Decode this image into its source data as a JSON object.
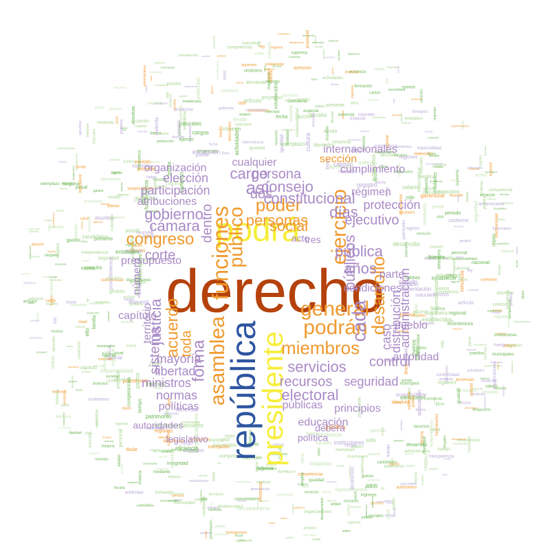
{
  "palette": {
    "dark_orange": "#b5420c",
    "navy_blue": "#2e55a0",
    "bright_yellow": "#f6ee3a",
    "orange": "#f09a2f",
    "lavender": "#a98ac6",
    "light_lavender": "#b9a7d6",
    "green": "#6ab552",
    "light_green": "#a6d48e",
    "pale_green": "#c4e3b2"
  },
  "words": {
    "primary": [
      {
        "text": "derecho",
        "color": "dark_orange"
      },
      {
        "text": "república",
        "color": "navy_blue"
      },
      {
        "text": "podrá",
        "color": "bright_yellow"
      },
      {
        "text": "presidente",
        "color": "bright_yellow"
      },
      {
        "text": "funciones",
        "color": "orange"
      },
      {
        "text": "asamblea",
        "color": "orange"
      },
      {
        "text": "público",
        "color": "orange"
      },
      {
        "text": "ejercicio",
        "color": "orange"
      },
      {
        "text": "general",
        "color": "orange"
      },
      {
        "text": "podrán",
        "color": "orange"
      },
      {
        "text": "miembros",
        "color": "orange"
      },
      {
        "text": "poder",
        "color": "orange"
      },
      {
        "text": "personas",
        "color": "orange"
      },
      {
        "text": "social",
        "color": "orange"
      },
      {
        "text": "acuerdo",
        "color": "orange"
      },
      {
        "text": "congreso",
        "color": "orange"
      },
      {
        "text": "desarrollo",
        "color": "orange"
      },
      {
        "text": "cada",
        "color": "lavender"
      },
      {
        "text": "constitucional",
        "color": "lavender"
      },
      {
        "text": "gobierno",
        "color": "lavender"
      },
      {
        "text": "servicios",
        "color": "lavender"
      },
      {
        "text": "recursos",
        "color": "lavender"
      },
      {
        "text": "consejo",
        "color": "lavender"
      },
      {
        "text": "persona",
        "color": "lavender"
      },
      {
        "text": "cámara",
        "color": "lavender"
      },
      {
        "text": "forma",
        "color": "lavender"
      },
      {
        "text": "así",
        "color": "lavender"
      },
      {
        "text": "dos",
        "color": "lavender"
      },
      {
        "text": "cargo",
        "color": "lavender"
      },
      {
        "text": "pública",
        "color": "lavender"
      },
      {
        "text": "años",
        "color": "lavender"
      },
      {
        "text": "públicos",
        "color": "lavender"
      },
      {
        "text": "días",
        "color": "lavender"
      },
      {
        "text": "ejecutivo",
        "color": "lavender"
      },
      {
        "text": "electoral",
        "color": "lavender"
      },
      {
        "text": "control",
        "color": "lavender"
      },
      {
        "text": "justicia",
        "color": "lavender"
      },
      {
        "text": "sistema",
        "color": "lavender"
      },
      {
        "text": "toda",
        "color": "orange"
      },
      {
        "text": "corte",
        "color": "lavender"
      },
      {
        "text": "dentro",
        "color": "lavender"
      },
      {
        "text": "administración",
        "color": "lavender"
      },
      {
        "text": "distribución",
        "color": "lavender"
      },
      {
        "text": "caso",
        "color": "lavender"
      },
      {
        "text": "participación",
        "color": "lavender"
      },
      {
        "text": "elección",
        "color": "lavender"
      },
      {
        "text": "mayoría",
        "color": "lavender"
      },
      {
        "text": "libertad",
        "color": "lavender"
      },
      {
        "text": "ministros",
        "color": "lavender"
      },
      {
        "text": "normas",
        "color": "lavender"
      },
      {
        "text": "políticas",
        "color": "lavender"
      },
      {
        "text": "públicas",
        "color": "lavender"
      },
      {
        "text": "educación",
        "color": "lavender"
      },
      {
        "text": "principios",
        "color": "lavender"
      },
      {
        "text": "seguridad",
        "color": "lavender"
      },
      {
        "text": "protección",
        "color": "lavender"
      },
      {
        "text": "régimen",
        "color": "lavender"
      },
      {
        "text": "condiciones",
        "color": "lavender"
      },
      {
        "text": "parte",
        "color": "lavender"
      },
      {
        "text": "autoridad",
        "color": "lavender"
      },
      {
        "text": "pueblo",
        "color": "lavender"
      },
      {
        "text": "cualquier",
        "color": "lavender"
      },
      {
        "text": "organización",
        "color": "lavender"
      },
      {
        "text": "atribuciones",
        "color": "lavender"
      },
      {
        "text": "cumplimiento",
        "color": "lavender"
      },
      {
        "text": "internacionales",
        "color": "lavender"
      },
      {
        "text": "sección",
        "color": "orange"
      },
      {
        "text": "presupuesto",
        "color": "lavender"
      },
      {
        "text": "número",
        "color": "lavender"
      },
      {
        "text": "territorio",
        "color": "lavender"
      },
      {
        "text": "capítulo",
        "color": "lavender"
      },
      {
        "text": "deberá",
        "color": "lavender"
      },
      {
        "text": "política",
        "color": "lavender"
      },
      {
        "text": "autoridades",
        "color": "lavender"
      },
      {
        "text": "legislativo",
        "color": "lavender"
      },
      {
        "text": "tres",
        "color": "lavender"
      },
      {
        "text": "acto",
        "color": "lavender"
      }
    ],
    "secondary": [
      "ley",
      "leyes",
      "estado",
      "nacional",
      "artículo",
      "constitución",
      "ciudadanos",
      "tribunal",
      "órganos",
      "plazo",
      "efecto",
      "función",
      "derechos",
      "elecciones",
      "instituciones",
      "comisión",
      "vigente",
      "ciudadanas",
      "jurisdicción",
      "servicio",
      "reforma",
      "suprema",
      "entidades",
      "popular",
      "proyectos",
      "naturales",
      "establecer",
      "gobiernos",
      "iniciativa",
      "autónomos",
      "departamental",
      "formación",
      "indígena",
      "regional",
      "periodo",
      "empresas",
      "acción",
      "menos",
      "sociedad",
      "soberanía",
      "fecha",
      "orden",
      "bienes",
      "ingresos",
      "económica",
      "representantes",
      "vicepresidente",
      "proyecto",
      "conforme",
      "cargos",
      "absoluta",
      "diputados",
      "senadores",
      "salud",
      "especial",
      "tratados",
      "patrimonio",
      "registro",
      "candidatos",
      "perjuicio",
      "cualquiera",
      "funcionarios",
      "funcionamiento",
      "tribunales",
      "capítulo",
      "mediante",
      "actividades",
      "nacionales",
      "garantías",
      "privadas",
      "municipal",
      "extranjeros",
      "presente",
      "comunidades",
      "organizaciones",
      "dispuesto",
      "administrativa",
      "ministerio",
      "municipios",
      "competencia",
      "gestión",
      "vigencia",
      "calidad",
      "garantizar",
      "mandato",
      "políticos",
      "fiscal",
      "defensa",
      "integrantes",
      "procedimientos",
      "jurídica",
      "igualdad",
      "ciudadanía",
      "sesiones",
      "requisitos",
      "excepción",
      "medio",
      "asuntos",
      "establecidos",
      "fuerzas",
      "disposiciones",
      "ninguna",
      "resoluciones",
      "partidos",
      "determine",
      "siguientes",
      "sólo",
      "ello",
      "edad",
      "hacer",
      "cinco",
      "nivel",
      "tiempo",
      "caso",
      "bajo",
      "todas",
      "puede",
      "salvo",
      "fines",
      "sobre",
      "votos",
      "actos",
      "modo",
      "todo",
      "objeto",
      "uso",
      "base",
      "fin",
      "ejercer",
      "alguna",
      "planes",
      "plazo",
      "previa",
      "forma",
      "órgano",
      "producción",
      "personal",
      "trabajo",
      "empleo",
      "recursos",
      "económicos",
      "desarrollo",
      "sociales",
      "culturales",
      "propiedad",
      "judicial",
      "conformidad",
      "facultades",
      "municipales",
      "tierra",
      "agua",
      "cultura",
      "poderes",
      "misma",
      "mismo",
      "mismos",
      "públicas",
      "nación",
      "estados",
      "provincias",
      "regiones",
      "competencias",
      "consulta",
      "elegidos",
      "sistema",
      "judicial",
      "penal",
      "civil",
      "derecho",
      "libre",
      "respeto",
      "dignidad",
      "vida",
      "paz",
      "trabajo",
      "familia",
      "niños",
      "mujeres",
      "pueblos",
      "territorios",
      "medidas",
      "control",
      "fiscalía",
      "contraloría",
      "defensoría",
      "banco",
      "moneda",
      "tributos",
      "impuestos",
      "gastos",
      "inversión",
      "crédito",
      "deuda",
      "transparencia",
      "información",
      "acceso",
      "prensa",
      "opinión",
      "religión",
      "conciencia",
      "asociación",
      "reunión",
      "huelga",
      "sindicatos",
      "salario",
      "seguridad",
      "social",
      "vivienda",
      "alimentación",
      "ambiente",
      "naturaleza",
      "recursos",
      "naturales",
      "minería",
      "energía",
      "hidrocarburos",
      "bosques",
      "biodiversidad",
      "integridad",
      "independencia",
      "imparcialidad",
      "publicidad",
      "legalidad",
      "eficacia",
      "eficiencia",
      "responsabilidad",
      "sanción",
      "destitución",
      "juicio",
      "proceso",
      "recurso",
      "amparo",
      "habeas",
      "acción",
      "demanda",
      "sentencia",
      "resolución",
      "decisión",
      "votación",
      "mayoría",
      "quórum",
      "sesión",
      "legislatura",
      "periodo",
      "reelección",
      "renuncia",
      "ausencia",
      "reemplazo",
      "suplente",
      "titular",
      "cargo",
      "nombramiento",
      "designación",
      "remoción",
      "competente",
      "instancia",
      "apelación",
      "casación"
    ]
  }
}
